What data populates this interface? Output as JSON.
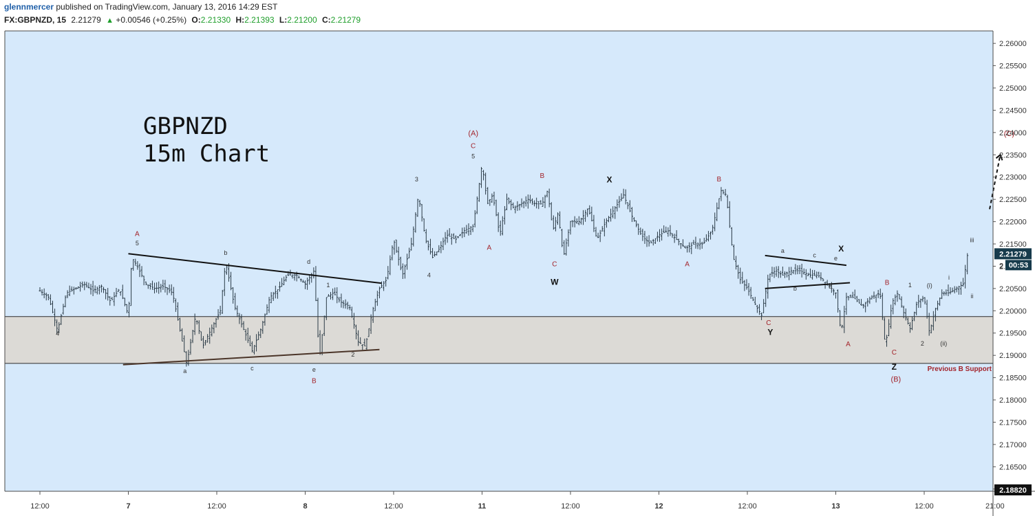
{
  "header": {
    "author": "glennmercer",
    "published_text": "published on TradingView.com, January 13, 2016 14:29 EST",
    "symbol": "FX:GBPNZD, 15",
    "last": "2.21279",
    "change": "+0.00546 (+0.25%)",
    "o_label": "O:",
    "o_value": "2.21330",
    "h_label": "H:",
    "h_value": "2.21393",
    "l_label": "L:",
    "l_value": "2.21200",
    "c_label": "C:",
    "c_value": "2.21279"
  },
  "chart_data": {
    "type": "candlestick",
    "title": "GBPNZD\n15m Chart",
    "title_lines": [
      "GBPNZD",
      "15m Chart"
    ],
    "y_ticks": [
      "2.26000",
      "2.25500",
      "2.25000",
      "2.24500",
      "2.24000",
      "2.23500",
      "2.23000",
      "2.22500",
      "2.22000",
      "2.21500",
      "2.21000",
      "2.20500",
      "2.20000",
      "2.19500",
      "2.19000",
      "2.18500",
      "2.18000",
      "2.17500",
      "2.17000",
      "2.16500",
      "2.16000"
    ],
    "ylim": [
      2.1595,
      2.2628
    ],
    "x_ticks": [
      "12:00",
      "7",
      "12:00",
      "8",
      "12:00",
      "11",
      "12:00",
      "12",
      "12:00",
      "13",
      "12:00",
      "21:00"
    ],
    "x_tick_index": [
      0,
      5,
      10,
      15,
      20,
      25,
      30,
      35,
      40,
      45,
      50,
      54
    ],
    "price_labels": {
      "last": "2.21279",
      "countdown": "00:53",
      "partial": "2",
      "bottom": "2.18820"
    },
    "support_zone": {
      "low": 2.1882,
      "high": 2.1987,
      "label": "Previous B Support"
    },
    "trendlines": [
      {
        "points": [
          [
            5.0,
            2.2128
          ],
          [
            19.3,
            2.2062
          ]
        ],
        "color": "#111111"
      },
      {
        "points": [
          [
            4.7,
            2.1879
          ],
          [
            19.2,
            2.1913
          ]
        ],
        "color": "#4a3428"
      },
      {
        "points": [
          [
            41.0,
            2.2124
          ],
          [
            45.6,
            2.2102
          ]
        ],
        "color": "#111111"
      },
      {
        "points": [
          [
            41.0,
            2.205
          ],
          [
            45.8,
            2.2063
          ]
        ],
        "color": "#111111"
      }
    ],
    "projection": {
      "points": [
        [
          53.7,
          2.2228
        ],
        [
          54.3,
          2.235
        ]
      ],
      "label": "(C)"
    },
    "path": [
      [
        0.0,
        2.2045
      ],
      [
        0.5,
        2.203
      ],
      [
        1.0,
        2.1955
      ],
      [
        1.5,
        2.204
      ],
      [
        2.0,
        2.205
      ],
      [
        2.5,
        2.206
      ],
      [
        3.0,
        2.2045
      ],
      [
        3.5,
        2.2055
      ],
      [
        4.0,
        2.202
      ],
      [
        4.5,
        2.205
      ],
      [
        5.0,
        2.199
      ],
      [
        5.2,
        2.212
      ],
      [
        5.5,
        2.21
      ],
      [
        6.0,
        2.206
      ],
      [
        6.5,
        2.205
      ],
      [
        7.0,
        2.2055
      ],
      [
        7.5,
        2.204
      ],
      [
        8.0,
        2.194
      ],
      [
        8.3,
        2.188
      ],
      [
        8.8,
        2.199
      ],
      [
        9.2,
        2.192
      ],
      [
        9.7,
        2.196
      ],
      [
        10.2,
        2.2
      ],
      [
        10.5,
        2.211
      ],
      [
        11.0,
        2.201
      ],
      [
        11.5,
        2.196
      ],
      [
        12.0,
        2.191
      ],
      [
        12.5,
        2.196
      ],
      [
        13.0,
        2.203
      ],
      [
        13.5,
        2.205
      ],
      [
        14.0,
        2.208
      ],
      [
        14.5,
        2.208
      ],
      [
        15.0,
        2.206
      ],
      [
        15.5,
        2.209
      ],
      [
        15.8,
        2.189
      ],
      [
        16.2,
        2.203
      ],
      [
        16.6,
        2.204
      ],
      [
        17.0,
        2.202
      ],
      [
        17.5,
        2.201
      ],
      [
        18.0,
        2.193
      ],
      [
        18.4,
        2.192
      ],
      [
        18.8,
        2.2
      ],
      [
        19.2,
        2.205
      ],
      [
        19.6,
        2.207
      ],
      [
        20.0,
        2.216
      ],
      [
        20.5,
        2.208
      ],
      [
        21.0,
        2.215
      ],
      [
        21.4,
        2.226
      ],
      [
        21.8,
        2.216
      ],
      [
        22.2,
        2.212
      ],
      [
        22.6,
        2.214
      ],
      [
        23.0,
        2.217
      ],
      [
        23.5,
        2.216
      ],
      [
        24.0,
        2.218
      ],
      [
        24.5,
        2.219
      ],
      [
        25.0,
        2.233
      ],
      [
        25.3,
        2.224
      ],
      [
        25.6,
        2.226
      ],
      [
        26.0,
        2.217
      ],
      [
        26.4,
        2.225
      ],
      [
        26.8,
        2.223
      ],
      [
        27.2,
        2.224
      ],
      [
        27.6,
        2.225
      ],
      [
        28.0,
        2.224
      ],
      [
        28.4,
        2.224
      ],
      [
        28.7,
        2.227
      ],
      [
        29.0,
        2.218
      ],
      [
        29.3,
        2.222
      ],
      [
        29.6,
        2.212
      ],
      [
        30.0,
        2.22
      ],
      [
        30.5,
        2.22
      ],
      [
        31.0,
        2.223
      ],
      [
        31.5,
        2.216
      ],
      [
        32.0,
        2.22
      ],
      [
        32.5,
        2.223
      ],
      [
        33.0,
        2.226
      ],
      [
        33.5,
        2.221
      ],
      [
        34.0,
        2.217
      ],
      [
        34.5,
        2.215
      ],
      [
        35.0,
        2.217
      ],
      [
        35.5,
        2.218
      ],
      [
        36.0,
        2.216
      ],
      [
        36.5,
        2.214
      ],
      [
        37.0,
        2.215
      ],
      [
        37.5,
        2.215
      ],
      [
        38.0,
        2.218
      ],
      [
        38.5,
        2.227
      ],
      [
        38.8,
        2.226
      ],
      [
        39.2,
        2.212
      ],
      [
        39.6,
        2.207
      ],
      [
        40.0,
        2.205
      ],
      [
        40.5,
        2.201
      ],
      [
        40.8,
        2.199
      ],
      [
        41.2,
        2.208
      ],
      [
        41.6,
        2.209
      ],
      [
        42.0,
        2.208
      ],
      [
        42.5,
        2.209
      ],
      [
        43.0,
        2.209
      ],
      [
        43.5,
        2.208
      ],
      [
        44.0,
        2.208
      ],
      [
        44.5,
        2.206
      ],
      [
        45.0,
        2.204
      ],
      [
        45.3,
        2.195
      ],
      [
        45.6,
        2.203
      ],
      [
        46.0,
        2.203
      ],
      [
        46.5,
        2.201
      ],
      [
        47.0,
        2.203
      ],
      [
        47.5,
        2.204
      ],
      [
        47.8,
        2.192
      ],
      [
        48.2,
        2.202
      ],
      [
        48.5,
        2.204
      ],
      [
        48.8,
        2.2
      ],
      [
        49.2,
        2.196
      ],
      [
        49.6,
        2.202
      ],
      [
        50.0,
        2.203
      ],
      [
        50.3,
        2.195
      ],
      [
        50.6,
        2.2
      ],
      [
        51.0,
        2.204
      ],
      [
        51.4,
        2.204
      ],
      [
        51.8,
        2.205
      ],
      [
        52.2,
        2.206
      ],
      [
        52.5,
        2.214
      ]
    ],
    "wave_labels": [
      {
        "text": "4",
        "x": 1.0,
        "y": 2.1944,
        "color": "#333333",
        "size": 9
      },
      {
        "text": "A",
        "x": 5.5,
        "y": 2.2168,
        "color": "#a3232a",
        "size": 10
      },
      {
        "text": "5",
        "x": 5.5,
        "y": 2.2147,
        "color": "#333333",
        "size": 9
      },
      {
        "text": "b",
        "x": 10.5,
        "y": 2.2125,
        "color": "#333333",
        "size": 9
      },
      {
        "text": "a",
        "x": 8.2,
        "y": 2.186,
        "color": "#333333",
        "size": 9
      },
      {
        "text": "c",
        "x": 12.0,
        "y": 2.1866,
        "color": "#333333",
        "size": 9
      },
      {
        "text": "d",
        "x": 15.2,
        "y": 2.2105,
        "color": "#333333",
        "size": 9
      },
      {
        "text": "e",
        "x": 15.5,
        "y": 2.1863,
        "color": "#333333",
        "size": 9
      },
      {
        "text": "B",
        "x": 15.5,
        "y": 2.1838,
        "color": "#a3232a",
        "size": 10
      },
      {
        "text": "1",
        "x": 16.3,
        "y": 2.2053,
        "color": "#333333",
        "size": 9
      },
      {
        "text": "2",
        "x": 17.7,
        "y": 2.1897,
        "color": "#333333",
        "size": 9
      },
      {
        "text": "3",
        "x": 21.3,
        "y": 2.229,
        "color": "#333333",
        "size": 9
      },
      {
        "text": "4",
        "x": 22.0,
        "y": 2.2075,
        "color": "#333333",
        "size": 9
      },
      {
        "text": "(A)",
        "x": 24.5,
        "y": 2.2393,
        "color": "#a3232a",
        "size": 11
      },
      {
        "text": "C",
        "x": 24.5,
        "y": 2.2365,
        "color": "#a3232a",
        "size": 10
      },
      {
        "text": "5",
        "x": 24.5,
        "y": 2.2342,
        "color": "#333333",
        "size": 9
      },
      {
        "text": "A",
        "x": 25.4,
        "y": 2.2137,
        "color": "#a3232a",
        "size": 10
      },
      {
        "text": "B",
        "x": 28.4,
        "y": 2.2298,
        "color": "#a3232a",
        "size": 10
      },
      {
        "text": "C",
        "x": 29.1,
        "y": 2.21,
        "color": "#a3232a",
        "size": 10
      },
      {
        "text": "W",
        "x": 29.1,
        "y": 2.2058,
        "color": "#111111",
        "size": 12
      },
      {
        "text": "X",
        "x": 32.2,
        "y": 2.2288,
        "color": "#111111",
        "size": 12
      },
      {
        "text": "A",
        "x": 36.6,
        "y": 2.21,
        "color": "#a3232a",
        "size": 10
      },
      {
        "text": "B",
        "x": 38.4,
        "y": 2.229,
        "color": "#a3232a",
        "size": 10
      },
      {
        "text": "a",
        "x": 42.0,
        "y": 2.213,
        "color": "#333333",
        "size": 9
      },
      {
        "text": "c",
        "x": 43.8,
        "y": 2.212,
        "color": "#333333",
        "size": 9
      },
      {
        "text": "e",
        "x": 45.0,
        "y": 2.2113,
        "color": "#333333",
        "size": 9
      },
      {
        "text": "X",
        "x": 45.3,
        "y": 2.2133,
        "color": "#111111",
        "size": 12
      },
      {
        "text": "b",
        "x": 42.7,
        "y": 2.2045,
        "color": "#333333",
        "size": 9
      },
      {
        "text": "d",
        "x": 44.7,
        "y": 2.205,
        "color": "#333333",
        "size": 9
      },
      {
        "text": "C",
        "x": 41.2,
        "y": 2.1968,
        "color": "#a3232a",
        "size": 10
      },
      {
        "text": "Y",
        "x": 41.3,
        "y": 2.1946,
        "color": "#111111",
        "size": 12
      },
      {
        "text": "A",
        "x": 45.7,
        "y": 2.192,
        "color": "#a3232a",
        "size": 10
      },
      {
        "text": "B",
        "x": 47.9,
        "y": 2.2058,
        "color": "#a3232a",
        "size": 10
      },
      {
        "text": "1",
        "x": 49.2,
        "y": 2.2053,
        "color": "#333333",
        "size": 9
      },
      {
        "text": "(i)",
        "x": 50.3,
        "y": 2.2052,
        "color": "#333333",
        "size": 9
      },
      {
        "text": "i",
        "x": 51.4,
        "y": 2.207,
        "color": "#333333",
        "size": 9
      },
      {
        "text": "ii",
        "x": 52.7,
        "y": 2.2028,
        "color": "#333333",
        "size": 9
      },
      {
        "text": "iii",
        "x": 52.7,
        "y": 2.2154,
        "color": "#333333",
        "size": 9
      },
      {
        "text": "C",
        "x": 48.3,
        "y": 2.1902,
        "color": "#a3232a",
        "size": 10
      },
      {
        "text": "2",
        "x": 49.9,
        "y": 2.1922,
        "color": "#333333",
        "size": 9
      },
      {
        "text": "(ii)",
        "x": 51.1,
        "y": 2.1922,
        "color": "#333333",
        "size": 9
      },
      {
        "text": "Z",
        "x": 48.3,
        "y": 2.1868,
        "color": "#111111",
        "size": 12
      },
      {
        "text": "(B)",
        "x": 48.4,
        "y": 2.1841,
        "color": "#a3232a",
        "size": 11
      },
      {
        "text": "(C)",
        "x": 54.8,
        "y": 2.2392,
        "color": "#a3232a",
        "size": 11
      }
    ]
  },
  "colors": {
    "plot_bg": "#d6e9fb",
    "zone_bg": "#dcdad6",
    "candle": "#2a3a46",
    "wave_red": "#a3232a",
    "last_tag": "#173b4c"
  }
}
